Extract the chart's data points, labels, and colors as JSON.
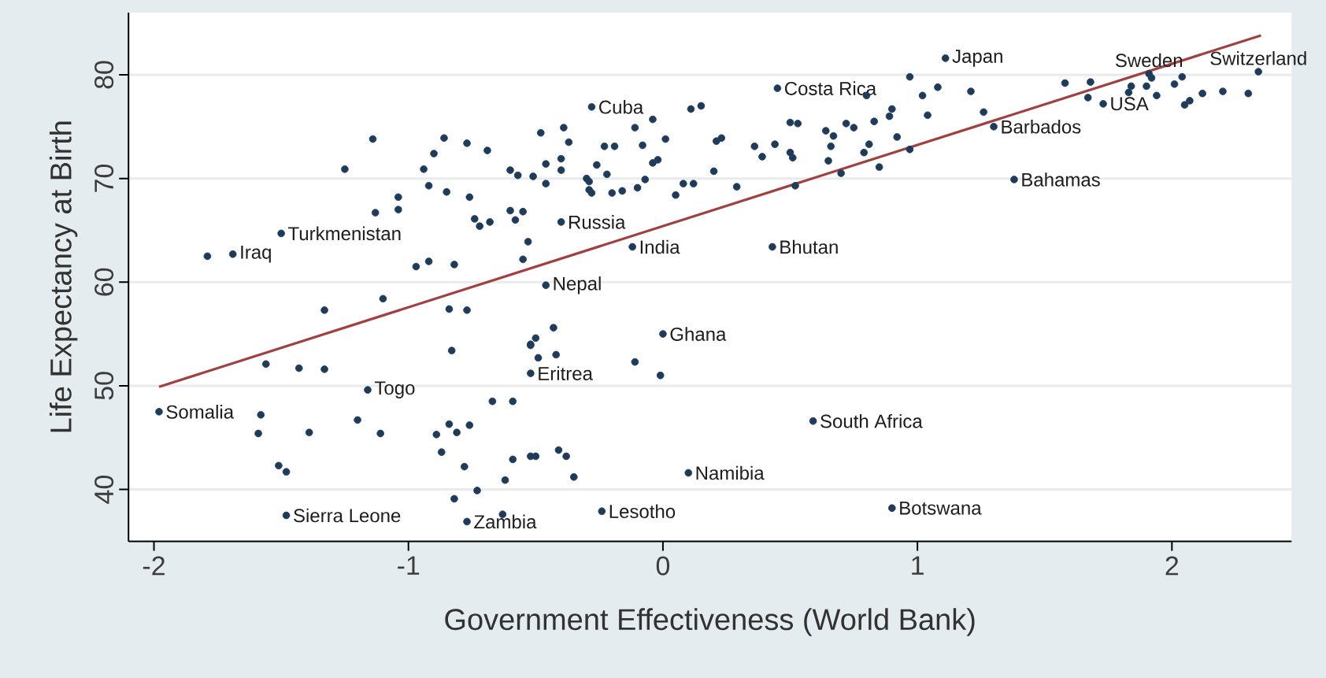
{
  "chart_data": {
    "type": "scatter",
    "xlabel": "Government Effectiveness (World Bank)",
    "ylabel": "Life Expectancy at Birth",
    "xlim": [
      -2.1,
      2.47
    ],
    "ylim": [
      35,
      86
    ],
    "xticks": [
      -2,
      -1,
      0,
      1,
      2
    ],
    "yticks": [
      40,
      50,
      60,
      70,
      80
    ],
    "grid": "y",
    "marker": "circle",
    "series": [
      {
        "color": "#1f3b5a",
        "x": [
          -1.98,
          -1.69,
          -1.5,
          -1.16,
          -1.48,
          -0.77,
          -0.28,
          -0.4,
          -0.46,
          -0.12,
          -0.52,
          0.0,
          -0.24,
          0.1,
          0.59,
          0.9,
          0.43,
          0.45,
          1.11,
          1.3,
          1.38,
          1.73,
          1.91,
          2.34,
          -1.79,
          -1.1,
          -1.33,
          -0.84,
          -0.77,
          -1.56,
          -1.43,
          -1.33,
          -0.83,
          -0.52,
          -1.58,
          -1.59,
          -1.39,
          -1.2,
          -1.11,
          -0.67,
          -0.59,
          -0.84,
          -0.81,
          -0.76,
          -0.89,
          -0.87,
          -1.51,
          -1.48,
          -0.78,
          -0.59,
          -0.52,
          -0.62,
          -0.73,
          -0.82,
          -0.63,
          -0.43,
          -0.5,
          -0.52,
          -0.49,
          -0.42,
          -0.11,
          -0.01,
          -0.5,
          -0.41,
          -0.38,
          -0.35,
          -1.14,
          -1.25,
          -0.86,
          -0.77,
          -0.9,
          -0.69,
          -0.94,
          -0.6,
          -0.57,
          -0.51,
          -0.92,
          -0.85,
          -0.76,
          -1.04,
          -1.04,
          -1.13,
          -0.6,
          -0.55,
          -0.58,
          -0.74,
          -0.72,
          -0.68,
          -0.53,
          -0.55,
          -0.97,
          -0.92,
          -0.82,
          -0.48,
          -0.39,
          -0.37,
          -0.46,
          -0.4,
          -0.4,
          -0.46,
          -0.3,
          -0.29,
          -0.29,
          -0.28,
          -0.26,
          -0.23,
          -0.19,
          -0.22,
          -0.2,
          -0.16,
          -0.11,
          -0.04,
          -0.08,
          0.01,
          -0.02,
          -0.04,
          -0.1,
          -0.07,
          0.05,
          0.08,
          0.12,
          0.11,
          0.15,
          0.2,
          0.21,
          0.23,
          0.29,
          0.36,
          0.39,
          0.44,
          0.5,
          0.53,
          0.5,
          0.51,
          0.52,
          0.64,
          0.67,
          0.66,
          0.65,
          0.72,
          0.75,
          0.7,
          0.8,
          0.83,
          0.81,
          0.79,
          0.85,
          0.89,
          0.9,
          0.92,
          0.97,
          0.97,
          1.02,
          1.04,
          1.08,
          1.21,
          1.26,
          1.58,
          1.68,
          1.67,
          1.84,
          1.83,
          1.9,
          1.92,
          1.94,
          2.01,
          2.04,
          2.05,
          2.07,
          2.12,
          2.2,
          2.3
        ],
        "values": [
          47.5,
          62.7,
          64.7,
          49.6,
          37.5,
          36.9,
          76.9,
          65.8,
          59.7,
          63.4,
          51.2,
          55.0,
          37.9,
          41.6,
          46.6,
          38.2,
          63.4,
          78.7,
          81.6,
          75.0,
          69.9,
          77.2,
          80.1,
          80.3,
          62.5,
          58.4,
          57.3,
          57.4,
          57.3,
          52.1,
          51.7,
          51.6,
          53.4,
          53.9,
          47.2,
          45.4,
          45.5,
          46.7,
          45.4,
          48.5,
          48.5,
          46.3,
          45.5,
          46.2,
          45.3,
          43.6,
          42.3,
          41.7,
          42.2,
          42.9,
          43.2,
          40.9,
          39.9,
          39.1,
          37.6,
          55.6,
          54.6,
          54.0,
          52.7,
          53.0,
          52.3,
          51.0,
          43.2,
          43.8,
          43.2,
          41.2,
          73.8,
          70.9,
          73.9,
          73.4,
          72.4,
          72.7,
          70.9,
          70.8,
          70.3,
          70.2,
          69.3,
          68.7,
          68.2,
          68.2,
          67.0,
          66.7,
          66.9,
          66.8,
          66.0,
          66.1,
          65.4,
          65.8,
          63.9,
          62.2,
          61.5,
          62.0,
          61.7,
          74.4,
          74.9,
          73.5,
          71.4,
          71.9,
          70.8,
          69.5,
          70.0,
          69.7,
          68.9,
          68.6,
          71.3,
          73.1,
          73.1,
          70.4,
          68.6,
          68.8,
          74.9,
          75.7,
          73.2,
          73.8,
          71.8,
          71.5,
          69.1,
          69.9,
          68.4,
          69.5,
          69.5,
          76.7,
          77.0,
          70.7,
          73.6,
          73.9,
          69.2,
          73.1,
          72.1,
          73.3,
          75.4,
          75.3,
          72.5,
          72.0,
          69.3,
          74.6,
          74.1,
          73.1,
          71.7,
          75.3,
          74.9,
          70.5,
          78.0,
          75.5,
          73.3,
          72.5,
          71.1,
          76.0,
          76.7,
          74.0,
          79.8,
          72.8,
          78.0,
          76.1,
          78.8,
          78.4,
          76.4,
          79.2,
          79.3,
          77.8,
          78.9,
          78.3,
          78.9,
          79.7,
          78.0,
          79.1,
          79.8,
          77.1,
          77.5,
          78.2,
          78.4,
          78.2
        ]
      },
      {
        "type": "line",
        "marker": "none",
        "color": "#a04040",
        "x": [
          -1.98,
          2.35
        ],
        "values": [
          49.9,
          83.8
        ]
      }
    ],
    "annotations": [
      {
        "text": "Somalia",
        "x": -1.98,
        "y": 47.5
      },
      {
        "text": "Iraq",
        "x": -1.69,
        "y": 62.7
      },
      {
        "text": "Turkmenistan",
        "x": -1.5,
        "y": 64.7
      },
      {
        "text": "Togo",
        "x": -1.16,
        "y": 49.6
      },
      {
        "text": "Sierra Leone",
        "x": -1.48,
        "y": 37.5
      },
      {
        "text": "Zambia",
        "x": -0.77,
        "y": 36.9
      },
      {
        "text": "Cuba",
        "x": -0.28,
        "y": 76.9
      },
      {
        "text": "Russia",
        "x": -0.4,
        "y": 65.8
      },
      {
        "text": "Nepal",
        "x": -0.46,
        "y": 59.7
      },
      {
        "text": "India",
        "x": -0.12,
        "y": 63.4
      },
      {
        "text": "Eritrea",
        "x": -0.52,
        "y": 51.2
      },
      {
        "text": "Ghana",
        "x": 0.0,
        "y": 55.0
      },
      {
        "text": "Lesotho",
        "x": -0.24,
        "y": 37.9
      },
      {
        "text": "Namibia",
        "x": 0.1,
        "y": 41.6
      },
      {
        "text": "South Africa",
        "x": 0.59,
        "y": 46.6
      },
      {
        "text": "Botswana",
        "x": 0.9,
        "y": 38.2
      },
      {
        "text": "Bhutan",
        "x": 0.43,
        "y": 63.4
      },
      {
        "text": "Costa Rica",
        "x": 0.45,
        "y": 78.7
      },
      {
        "text": "Japan",
        "x": 1.11,
        "y": 81.6
      },
      {
        "text": "Barbados",
        "x": 1.3,
        "y": 75.0
      },
      {
        "text": "Bahamas",
        "x": 1.38,
        "y": 69.9
      },
      {
        "text": "USA",
        "x": 1.73,
        "y": 77.2
      },
      {
        "text": "Sweden",
        "x": 1.91,
        "y": 80.1
      },
      {
        "text": "Switzerland",
        "x": 2.34,
        "y": 80.3
      }
    ]
  }
}
